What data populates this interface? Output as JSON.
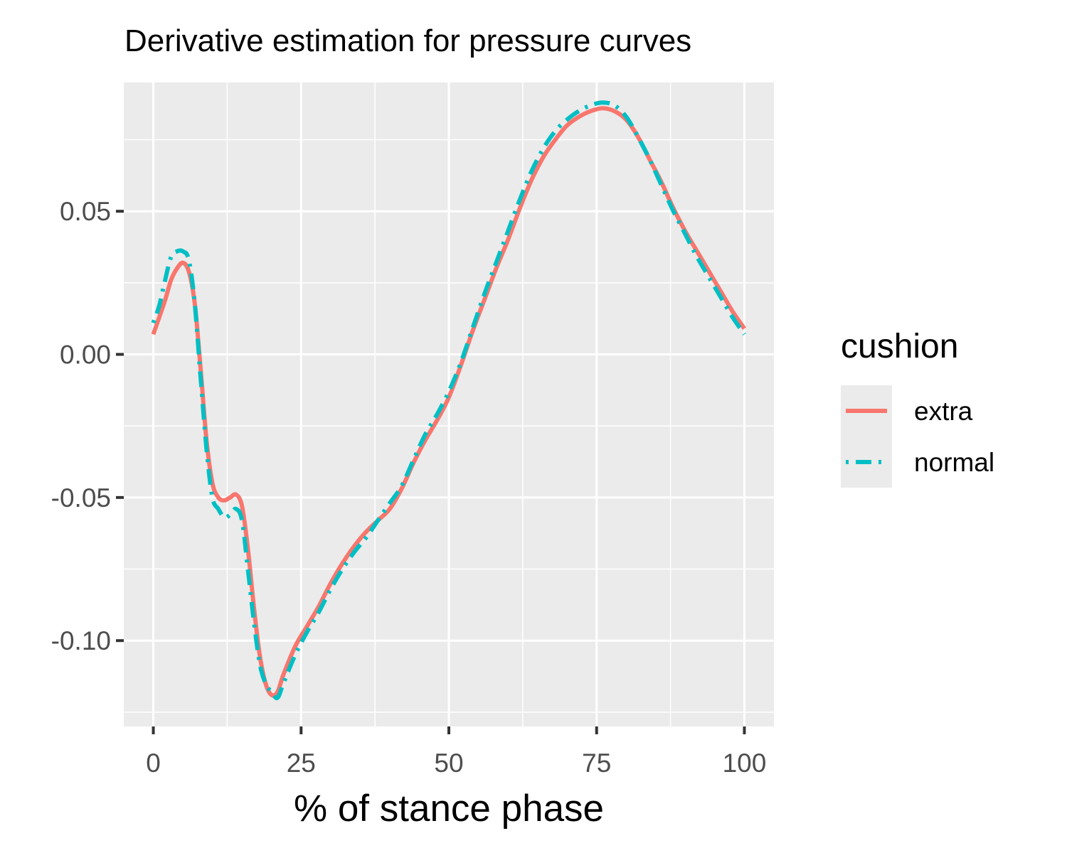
{
  "chart_data": {
    "type": "line",
    "title": "Derivative estimation for pressure curves",
    "xlabel": "% of stance phase",
    "ylabel": "",
    "xlim": [
      -5,
      105
    ],
    "ylim": [
      -0.13,
      0.095
    ],
    "x_ticks": [
      0,
      25,
      50,
      75,
      100
    ],
    "x_tick_labels": [
      "0",
      "25",
      "50",
      "75",
      "100"
    ],
    "y_ticks": [
      0.05,
      0.0,
      -0.05,
      -0.1
    ],
    "y_tick_labels": [
      "0.05",
      "0.00",
      "-0.05",
      "-0.10"
    ],
    "grid": true,
    "legend": {
      "title": "cushion",
      "position": "right"
    },
    "series": [
      {
        "name": "extra",
        "color": "#F8766D",
        "linetype": "solid",
        "points": [
          [
            0,
            0.007
          ],
          [
            1,
            0.013
          ],
          [
            2,
            0.019
          ],
          [
            3,
            0.026
          ],
          [
            4,
            0.03
          ],
          [
            5,
            0.032
          ],
          [
            6,
            0.029
          ],
          [
            7,
            0.018
          ],
          [
            8,
            -0.005
          ],
          [
            9,
            -0.03
          ],
          [
            10,
            -0.045
          ],
          [
            11,
            -0.05
          ],
          [
            12,
            -0.051
          ],
          [
            13,
            -0.05
          ],
          [
            14,
            -0.049
          ],
          [
            15,
            -0.053
          ],
          [
            16,
            -0.068
          ],
          [
            17,
            -0.088
          ],
          [
            18,
            -0.105
          ],
          [
            19,
            -0.115
          ],
          [
            20,
            -0.119
          ],
          [
            21,
            -0.118
          ],
          [
            22,
            -0.112
          ],
          [
            24,
            -0.102
          ],
          [
            26,
            -0.095
          ],
          [
            28,
            -0.088
          ],
          [
            30,
            -0.08
          ],
          [
            32,
            -0.073
          ],
          [
            34,
            -0.067
          ],
          [
            36,
            -0.062
          ],
          [
            38,
            -0.058
          ],
          [
            40,
            -0.054
          ],
          [
            42,
            -0.047
          ],
          [
            44,
            -0.038
          ],
          [
            46,
            -0.03
          ],
          [
            48,
            -0.023
          ],
          [
            50,
            -0.015
          ],
          [
            52,
            -0.004
          ],
          [
            54,
            0.008
          ],
          [
            56,
            0.019
          ],
          [
            58,
            0.03
          ],
          [
            60,
            0.04
          ],
          [
            62,
            0.051
          ],
          [
            64,
            0.061
          ],
          [
            66,
            0.069
          ],
          [
            68,
            0.075
          ],
          [
            70,
            0.08
          ],
          [
            72,
            0.083
          ],
          [
            74,
            0.085
          ],
          [
            76,
            0.086
          ],
          [
            78,
            0.085
          ],
          [
            80,
            0.082
          ],
          [
            82,
            0.076
          ],
          [
            84,
            0.068
          ],
          [
            86,
            0.06
          ],
          [
            88,
            0.051
          ],
          [
            90,
            0.043
          ],
          [
            92,
            0.036
          ],
          [
            94,
            0.029
          ],
          [
            96,
            0.022
          ],
          [
            98,
            0.015
          ],
          [
            100,
            0.009
          ]
        ]
      },
      {
        "name": "normal",
        "color": "#00BFC4",
        "linetype": "dotdash",
        "points": [
          [
            0,
            0.011
          ],
          [
            1,
            0.017
          ],
          [
            2,
            0.026
          ],
          [
            3,
            0.034
          ],
          [
            4,
            0.036
          ],
          [
            5,
            0.036
          ],
          [
            6,
            0.033
          ],
          [
            7,
            0.018
          ],
          [
            8,
            -0.008
          ],
          [
            9,
            -0.033
          ],
          [
            10,
            -0.05
          ],
          [
            11,
            -0.054
          ],
          [
            12,
            -0.057
          ],
          [
            13,
            -0.056
          ],
          [
            14,
            -0.054
          ],
          [
            15,
            -0.058
          ],
          [
            16,
            -0.075
          ],
          [
            17,
            -0.093
          ],
          [
            18,
            -0.108
          ],
          [
            19,
            -0.115
          ],
          [
            20,
            -0.118
          ],
          [
            21,
            -0.12
          ],
          [
            22,
            -0.115
          ],
          [
            24,
            -0.105
          ],
          [
            26,
            -0.097
          ],
          [
            28,
            -0.09
          ],
          [
            30,
            -0.082
          ],
          [
            32,
            -0.075
          ],
          [
            34,
            -0.069
          ],
          [
            36,
            -0.064
          ],
          [
            38,
            -0.058
          ],
          [
            40,
            -0.052
          ],
          [
            42,
            -0.046
          ],
          [
            44,
            -0.037
          ],
          [
            46,
            -0.028
          ],
          [
            48,
            -0.021
          ],
          [
            50,
            -0.013
          ],
          [
            52,
            -0.003
          ],
          [
            54,
            0.009
          ],
          [
            56,
            0.021
          ],
          [
            58,
            0.032
          ],
          [
            60,
            0.043
          ],
          [
            62,
            0.054
          ],
          [
            64,
            0.064
          ],
          [
            66,
            0.072
          ],
          [
            68,
            0.078
          ],
          [
            70,
            0.082
          ],
          [
            72,
            0.085
          ],
          [
            74,
            0.087
          ],
          [
            76,
            0.088
          ],
          [
            78,
            0.087
          ],
          [
            80,
            0.083
          ],
          [
            82,
            0.076
          ],
          [
            84,
            0.068
          ],
          [
            86,
            0.059
          ],
          [
            88,
            0.05
          ],
          [
            90,
            0.042
          ],
          [
            92,
            0.034
          ],
          [
            94,
            0.027
          ],
          [
            96,
            0.02
          ],
          [
            98,
            0.013
          ],
          [
            100,
            0.007
          ]
        ]
      }
    ]
  }
}
